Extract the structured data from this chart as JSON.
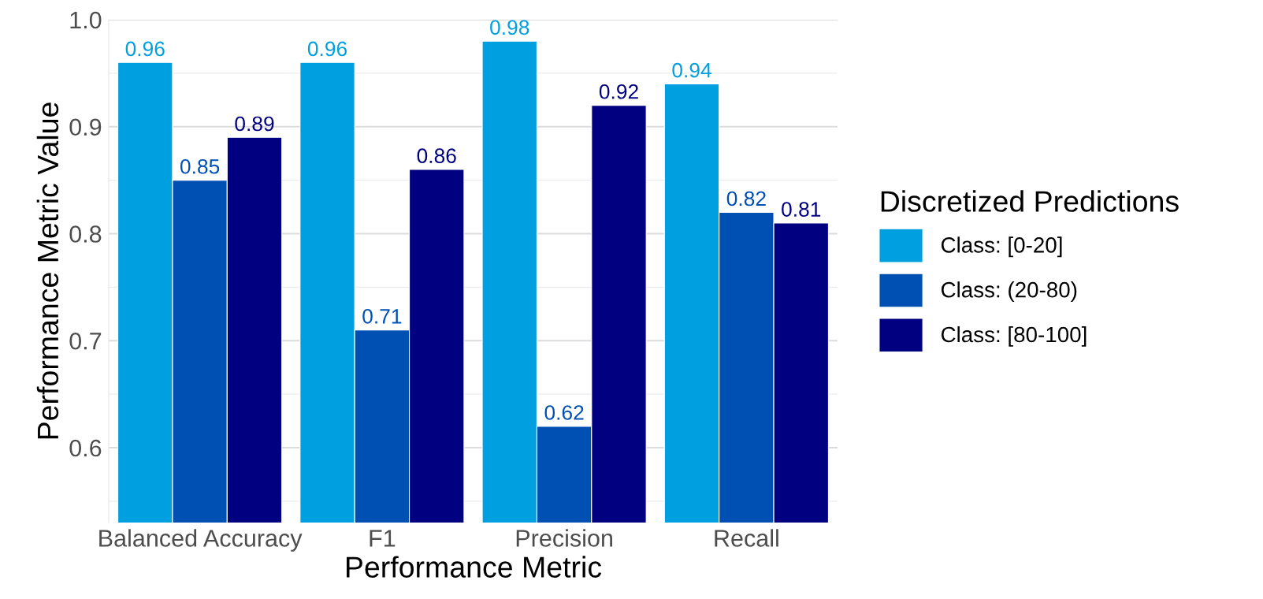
{
  "chart_data": {
    "type": "bar",
    "xlabel": "Performance Metric",
    "ylabel": "Performance Metric Value",
    "legend_title": "Discretized Predictions",
    "categories": [
      "Balanced Accuracy",
      "F1",
      "Precision",
      "Recall"
    ],
    "series": [
      {
        "name": "Class: [0-20]",
        "color": "#00a0e0",
        "values": [
          0.96,
          0.96,
          0.98,
          0.94
        ]
      },
      {
        "name": "Class: (20-80)",
        "color": "#0050b4",
        "values": [
          0.85,
          0.71,
          0.62,
          0.82
        ]
      },
      {
        "name": "Class: [80-100]",
        "color": "#000080",
        "values": [
          0.89,
          0.86,
          0.92,
          0.81
        ]
      }
    ],
    "ylim": [
      0.53,
      1.0
    ],
    "yticks": [
      0.6,
      0.7,
      0.8,
      0.9,
      {
        "value": 1.0,
        "label": "1.0"
      }
    ],
    "grid": "y",
    "legend": "right",
    "data_labels": true
  }
}
